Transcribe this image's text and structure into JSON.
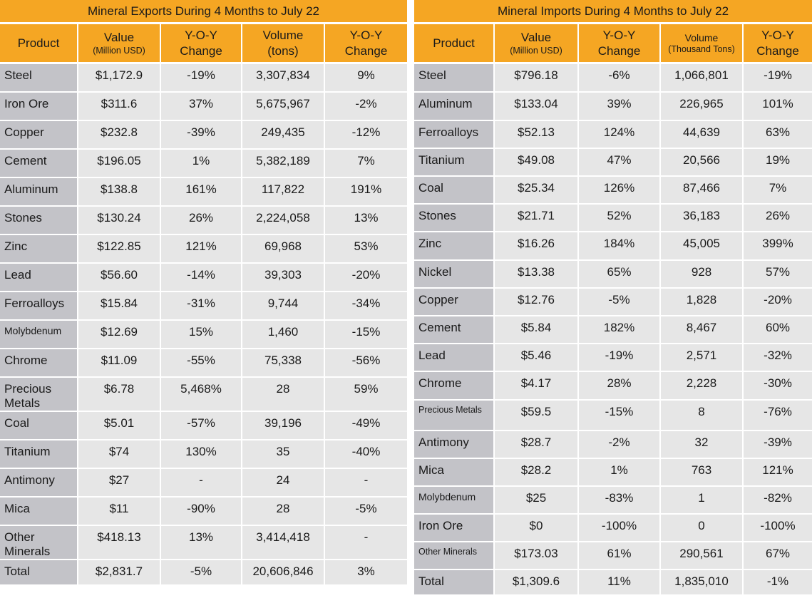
{
  "exports": {
    "title": "Mineral Exports During 4 Months to July 22",
    "headers": {
      "product": "Product",
      "value": "Value",
      "value_unit": "(Million USD)",
      "yoy1_line1": "Y-O-Y",
      "yoy1_line2": "Change",
      "volume": "Volume",
      "volume_unit": "(tons)",
      "yoy2_line1": "Y-O-Y",
      "yoy2_line2": "Change"
    },
    "rows": [
      {
        "product": "Steel",
        "value": "$1,172.9",
        "yoy_value": "-19%",
        "volume": "3,307,834",
        "yoy_volume": "9%"
      },
      {
        "product": "Iron Ore",
        "value": "$311.6",
        "yoy_value": "37%",
        "volume": "5,675,967",
        "yoy_volume": "-2%"
      },
      {
        "product": "Copper",
        "value": "$232.8",
        "yoy_value": "-39%",
        "volume": "249,435",
        "yoy_volume": "-12%"
      },
      {
        "product": "Cement",
        "value": "$196.05",
        "yoy_value": "1%",
        "volume": "5,382,189",
        "yoy_volume": "7%"
      },
      {
        "product": "Aluminum",
        "value": "$138.8",
        "yoy_value": "161%",
        "volume": "117,822",
        "yoy_volume": "191%"
      },
      {
        "product": "Stones",
        "value": "$130.24",
        "yoy_value": "26%",
        "volume": "2,224,058",
        "yoy_volume": "13%"
      },
      {
        "product": "Zinc",
        "value": "$122.85",
        "yoy_value": "121%",
        "volume": "69,968",
        "yoy_volume": "53%"
      },
      {
        "product": "Lead",
        "value": "$56.60",
        "yoy_value": "-14%",
        "volume": "39,303",
        "yoy_volume": "-20%"
      },
      {
        "product": "Ferroalloys",
        "value": "$15.84",
        "yoy_value": "-31%",
        "volume": "9,744",
        "yoy_volume": "-34%"
      },
      {
        "product": "Molybdenum",
        "value": "$12.69",
        "yoy_value": "15%",
        "volume": "1,460",
        "yoy_volume": "-15%"
      },
      {
        "product": "Chrome",
        "value": "$11.09",
        "yoy_value": "-55%",
        "volume": "75,338",
        "yoy_volume": "-56%"
      },
      {
        "product": "Precious Metals",
        "value": "$6.78",
        "yoy_value": "5,468%",
        "volume": "28",
        "yoy_volume": "59%"
      },
      {
        "product": "Coal",
        "value": "$5.01",
        "yoy_value": "-57%",
        "volume": "39,196",
        "yoy_volume": "-49%"
      },
      {
        "product": "Titanium",
        "value": "$74",
        "yoy_value": "130%",
        "volume": "35",
        "yoy_volume": "-40%"
      },
      {
        "product": "Antimony",
        "value": "$27",
        "yoy_value": "-",
        "volume": "24",
        "yoy_volume": "-"
      },
      {
        "product": "Mica",
        "value": "$11",
        "yoy_value": "-90%",
        "volume": "28",
        "yoy_volume": "-5%"
      },
      {
        "product": "Other Minerals",
        "value": "$418.13",
        "yoy_value": "13%",
        "volume": "3,414,418",
        "yoy_volume": "-"
      },
      {
        "product": "Total",
        "value": "$2,831.7",
        "yoy_value": "-5%",
        "volume": "20,606,846",
        "yoy_volume": "3%"
      }
    ]
  },
  "imports": {
    "title": "Mineral Imports During 4 Months to July 22",
    "headers": {
      "product": "Product",
      "value": "Value",
      "value_unit": "(Million USD)",
      "yoy1_line1": "Y-O-Y",
      "yoy1_line2": "Change",
      "volume": "Volume",
      "volume_unit": "(Thousand Tons)",
      "yoy2_line1": "Y-O-Y",
      "yoy2_line2": "Change"
    },
    "rows": [
      {
        "product": "Steel",
        "value": "$796.18",
        "yoy_value": "-6%",
        "volume": "1,066,801",
        "yoy_volume": "-19%"
      },
      {
        "product": "Aluminum",
        "value": "$133.04",
        "yoy_value": "39%",
        "volume": "226,965",
        "yoy_volume": "101%"
      },
      {
        "product": "Ferroalloys",
        "value": "$52.13",
        "yoy_value": "124%",
        "volume": "44,639",
        "yoy_volume": "63%"
      },
      {
        "product": "Titanium",
        "value": "$49.08",
        "yoy_value": "47%",
        "volume": "20,566",
        "yoy_volume": "19%"
      },
      {
        "product": "Coal",
        "value": "$25.34",
        "yoy_value": "126%",
        "volume": "87,466",
        "yoy_volume": "7%"
      },
      {
        "product": "Stones",
        "value": "$21.71",
        "yoy_value": "52%",
        "volume": "36,183",
        "yoy_volume": "26%"
      },
      {
        "product": "Zinc",
        "value": "$16.26",
        "yoy_value": "184%",
        "volume": "45,005",
        "yoy_volume": "399%"
      },
      {
        "product": "Nickel",
        "value": "$13.38",
        "yoy_value": "65%",
        "volume": "928",
        "yoy_volume": "57%"
      },
      {
        "product": "Copper",
        "value": "$12.76",
        "yoy_value": "-5%",
        "volume": "1,828",
        "yoy_volume": "-20%"
      },
      {
        "product": "Cement",
        "value": "$5.84",
        "yoy_value": "182%",
        "volume": "8,467",
        "yoy_volume": "60%"
      },
      {
        "product": "Lead",
        "value": "$5.46",
        "yoy_value": "-19%",
        "volume": "2,571",
        "yoy_volume": "-32%"
      },
      {
        "product": "Chrome",
        "value": "$4.17",
        "yoy_value": "28%",
        "volume": "2,228",
        "yoy_volume": "-30%"
      },
      {
        "product": "Precious Metals",
        "value": "$59.5",
        "yoy_value": "-15%",
        "volume": "8",
        "yoy_volume": "-76%"
      },
      {
        "product": "Antimony",
        "value": "$28.7",
        "yoy_value": "-2%",
        "volume": "32",
        "yoy_volume": "-39%"
      },
      {
        "product": "Mica",
        "value": "$28.2",
        "yoy_value": "1%",
        "volume": "763",
        "yoy_volume": "121%"
      },
      {
        "product": "Molybdenum",
        "value": "$25",
        "yoy_value": "-83%",
        "volume": "1",
        "yoy_volume": "-82%"
      },
      {
        "product": "Iron Ore",
        "value": "$0",
        "yoy_value": "-100%",
        "volume": "0",
        "yoy_volume": "-100%"
      },
      {
        "product": "Other Minerals",
        "value": "$173.03",
        "yoy_value": "61%",
        "volume": "290,561",
        "yoy_volume": "67%"
      },
      {
        "product": "Total",
        "value": "$1,309.6",
        "yoy_value": "11%",
        "volume": "1,835,010",
        "yoy_volume": "-1%"
      }
    ]
  },
  "colors": {
    "header_orange": "#f5a623",
    "cell_gray": "#e6e6e6",
    "product_gray": "#c3c3c8"
  }
}
